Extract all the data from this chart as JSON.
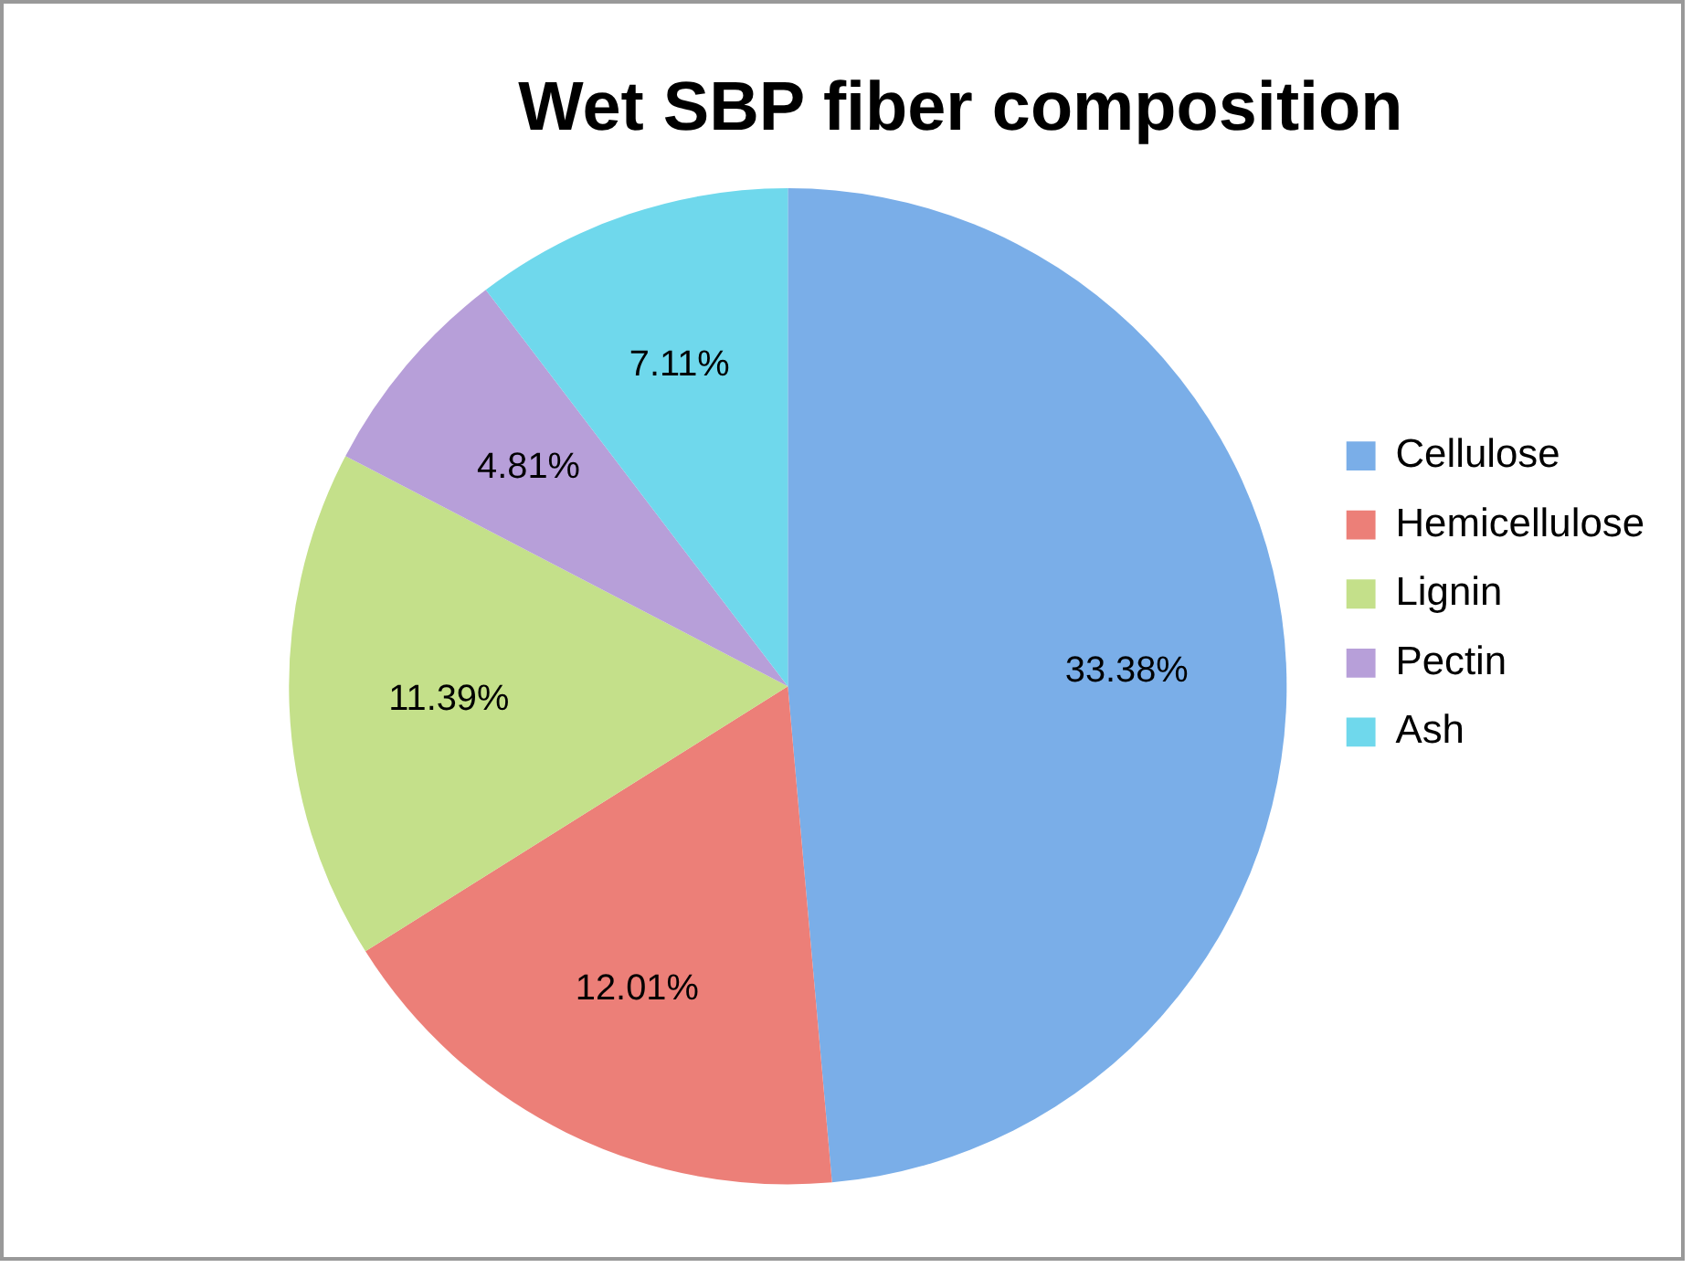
{
  "chart_data": {
    "type": "pie",
    "title": "Wet SBP fiber composition",
    "categories": [
      "Cellulose",
      "Hemicellulose",
      "Lignin",
      "Pectin",
      "Ash"
    ],
    "values": [
      33.38,
      12.01,
      11.39,
      4.81,
      7.11
    ],
    "colors": [
      "#7aaee8",
      "#ec7f78",
      "#c4e08a",
      "#b79fd9",
      "#6fd8ec"
    ],
    "value_labels": [
      "33.38%",
      "12.01%",
      "11.39%",
      "4.81%",
      "7.11%"
    ],
    "legend": "right"
  }
}
